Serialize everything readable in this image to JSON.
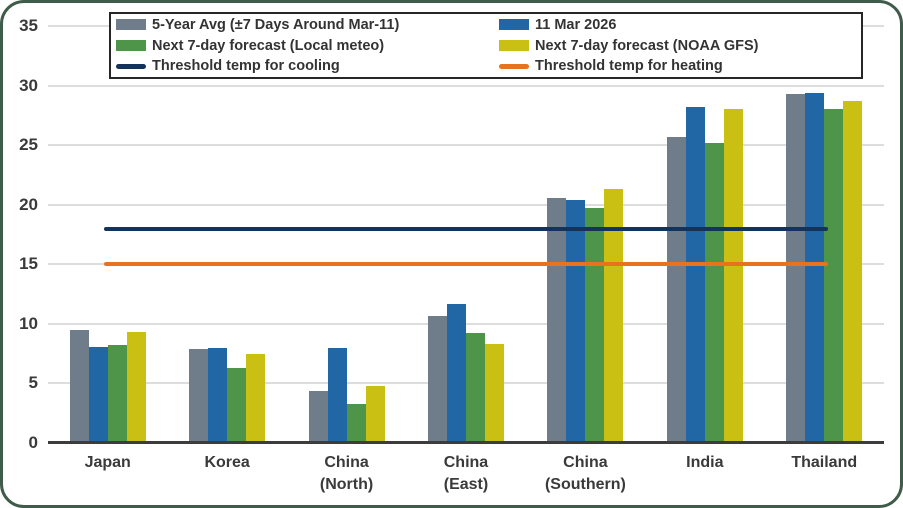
{
  "chart_data": {
    "type": "bar",
    "title": "",
    "xlabel": "",
    "ylabel": "",
    "categories": [
      "Japan",
      "Korea",
      "China\n(North)",
      "China\n(East)",
      "China\n(Southern)",
      "India",
      "Thailand"
    ],
    "series": [
      {
        "name": "5-Year Avg (±7 Days Around Mar-11)",
        "color": "#6f7c8a",
        "values": [
          9.5,
          7.9,
          4.4,
          10.7,
          20.6,
          25.7,
          29.3
        ]
      },
      {
        "name": "11 Mar 2026",
        "color": "#2166a5",
        "values": [
          8.1,
          8.0,
          8.0,
          11.7,
          20.4,
          28.2,
          29.4
        ]
      },
      {
        "name": "Next 7-day forecast (Local meteo)",
        "color": "#4e9549",
        "values": [
          8.2,
          6.3,
          3.3,
          9.2,
          19.7,
          25.2,
          28.0
        ]
      },
      {
        "name": "Next 7-day forecast (NOAA GFS)",
        "color": "#c9c013",
        "values": [
          9.3,
          7.5,
          4.8,
          8.3,
          21.3,
          28.0,
          28.7
        ]
      }
    ],
    "threshold_lines": [
      {
        "name": "Threshold temp for cooling",
        "color": "#14335a",
        "value": 18
      },
      {
        "name": "Threshold temp for heating",
        "color": "#e8731f",
        "value": 15
      }
    ],
    "y_axis": {
      "min": 0,
      "max": 35,
      "step": 5,
      "ticks": [
        0,
        5,
        10,
        15,
        20,
        25,
        30,
        35
      ]
    },
    "grid": true,
    "legend_position": "top",
    "colors": {
      "gridline": "#dddddd",
      "axis_baseline": "#3c3c3c",
      "card_border": "#3f5b49",
      "legend_border": "#262626",
      "text": "#3a3a3a"
    }
  }
}
